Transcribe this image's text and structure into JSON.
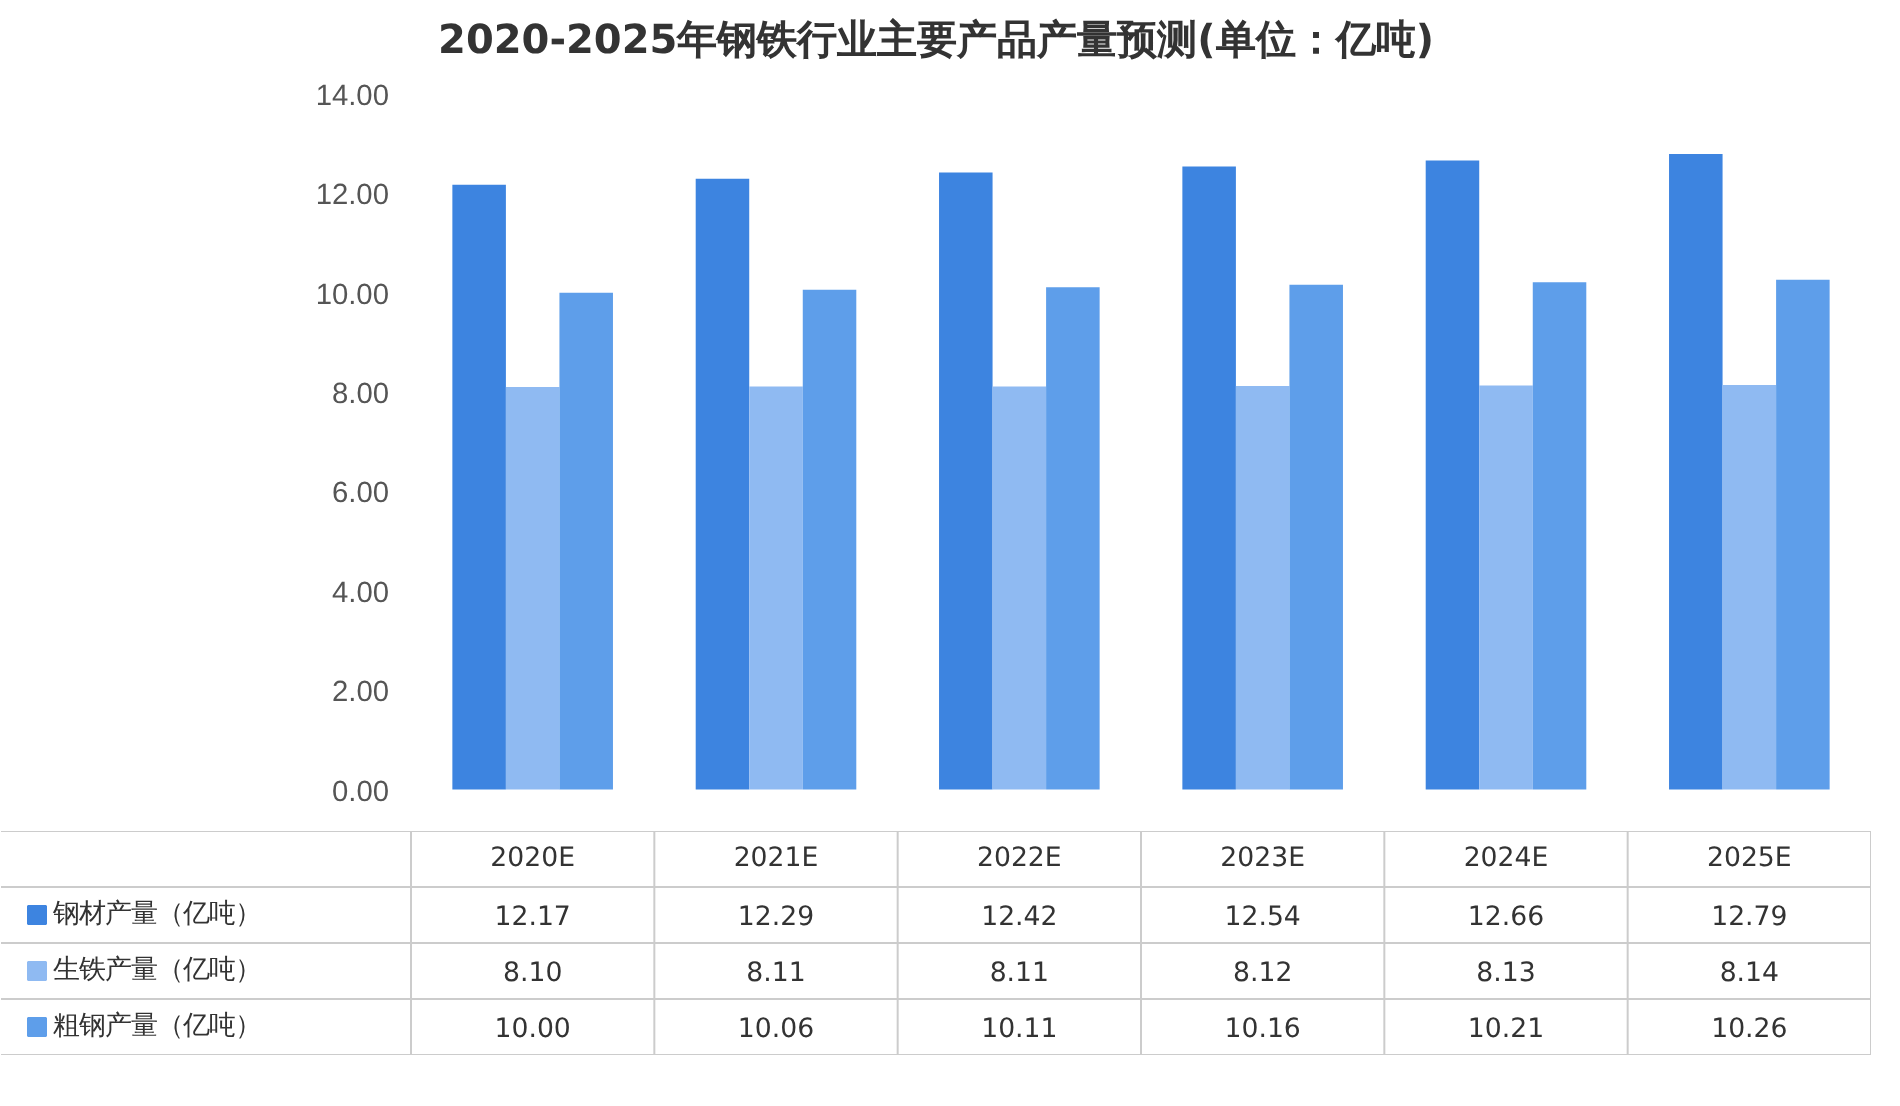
{
  "chart_data": {
    "type": "bar",
    "title": "2020-2025年钢铁行业主要产品产量预测(单位：亿吨)",
    "categories": [
      "2020E",
      "2021E",
      "2022E",
      "2023E",
      "2024E",
      "2025E"
    ],
    "series": [
      {
        "name": "钢材产量（亿吨）",
        "color": "#3d84e0",
        "values": [
          12.17,
          12.29,
          12.42,
          12.54,
          12.66,
          12.79
        ],
        "value_labels": [
          "12.17",
          "12.29",
          "12.42",
          "12.54",
          "12.66",
          "12.79"
        ]
      },
      {
        "name": "生铁产量（亿吨）",
        "color": "#8fbaf2",
        "values": [
          8.1,
          8.11,
          8.11,
          8.12,
          8.13,
          8.14
        ],
        "value_labels": [
          "8.10",
          "8.11",
          "8.11",
          "8.12",
          "8.13",
          "8.14"
        ]
      },
      {
        "name": "粗钢产量（亿吨）",
        "color": "#5e9eea",
        "values": [
          10.0,
          10.06,
          10.11,
          10.16,
          10.21,
          10.26
        ],
        "value_labels": [
          "10.00",
          "10.06",
          "10.11",
          "10.16",
          "10.21",
          "10.26"
        ]
      }
    ],
    "ylim": [
      0,
      14
    ],
    "yticks": [
      {
        "value": 0,
        "label": "0.00"
      },
      {
        "value": 2,
        "label": "2.00"
      },
      {
        "value": 4,
        "label": "4.00"
      },
      {
        "value": 6,
        "label": "6.00"
      },
      {
        "value": 8,
        "label": "8.00"
      },
      {
        "value": 10,
        "label": "10.00"
      },
      {
        "value": 12,
        "label": "12.00"
      },
      {
        "value": 14,
        "label": "14.00"
      }
    ],
    "grid": false,
    "legend": "bottom",
    "tick_labels": "y"
  }
}
